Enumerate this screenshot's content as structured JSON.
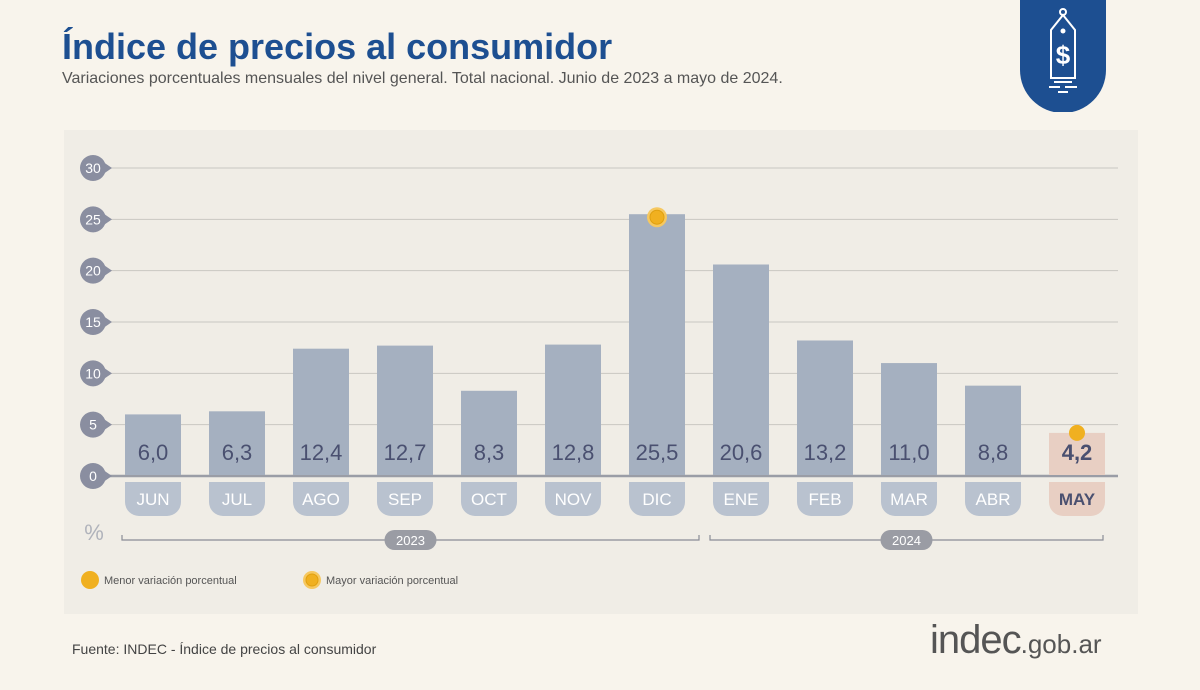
{
  "header": {
    "title": "Índice de precios al consumidor",
    "subtitle": "Variaciones porcentuales mensuales del nivel general. Total nacional. Junio de 2023 a mayo de 2024.",
    "badge_icon": "price-tag-dollar-icon"
  },
  "colors": {
    "bar": "#a5b0c0",
    "bar_highlight": "#e8cfc3",
    "marker": "#f0b020",
    "title": "#1d4f91",
    "tick_badge": "#8a8ea0"
  },
  "chart_data": {
    "type": "bar",
    "title": "Índice de precios al consumidor",
    "ylabel": "%",
    "ylim": [
      0,
      30
    ],
    "yticks": [
      0,
      5,
      10,
      15,
      20,
      25,
      30
    ],
    "grid": true,
    "categories": [
      "JUN",
      "JUL",
      "AGO",
      "SEP",
      "OCT",
      "NOV",
      "DIC",
      "ENE",
      "FEB",
      "MAR",
      "ABR",
      "MAY"
    ],
    "values": [
      6.0,
      6.3,
      12.4,
      12.7,
      8.3,
      12.8,
      25.5,
      20.6,
      13.2,
      11.0,
      8.8,
      4.2
    ],
    "value_labels": [
      "6,0",
      "6,3",
      "12,4",
      "12,7",
      "8,3",
      "12,8",
      "25,5",
      "20,6",
      "13,2",
      "11,0",
      "8,8",
      "4,2"
    ],
    "highlighted": "MAY",
    "year_groups": [
      {
        "label": "2023",
        "from": "JUN",
        "to": "DIC"
      },
      {
        "label": "2024",
        "from": "ENE",
        "to": "MAY"
      }
    ],
    "min_marker": "MAY",
    "max_marker": "DIC",
    "legend": [
      {
        "label": "Menor variación porcentual",
        "type": "min"
      },
      {
        "label": "Mayor variación porcentual",
        "type": "max"
      }
    ],
    "legend_placement": "bottom-left"
  },
  "footer": {
    "source": "Fuente: INDEC - Índice de precios al consumidor",
    "logo_main": "indec",
    "logo_suffix": ".gob.ar"
  }
}
